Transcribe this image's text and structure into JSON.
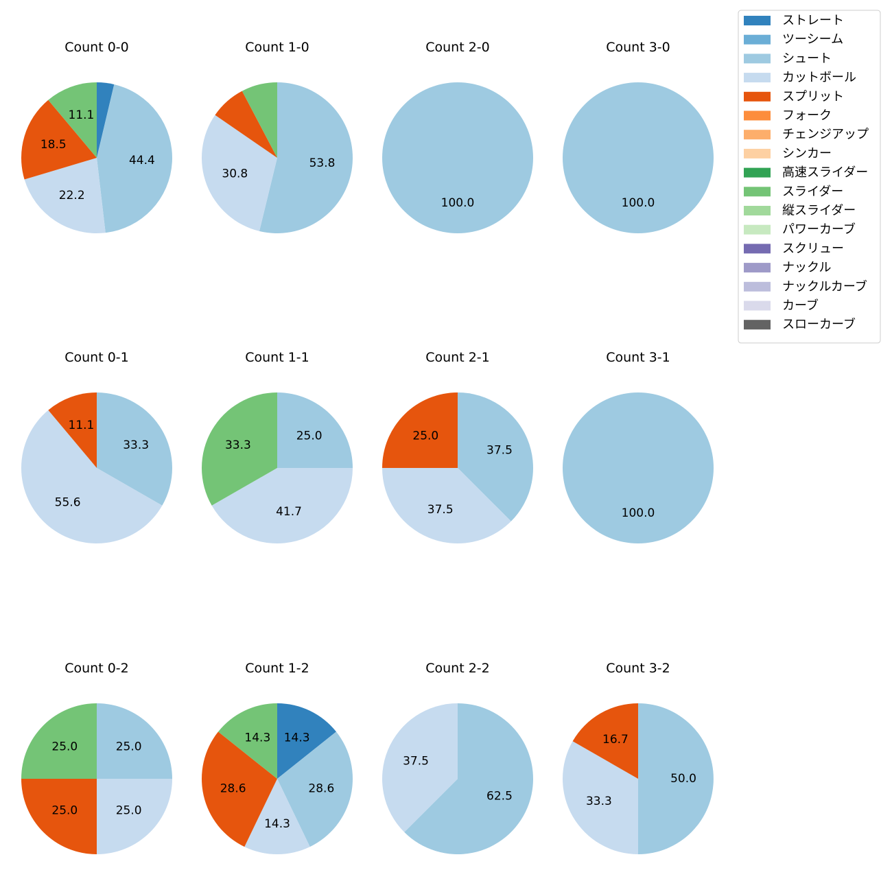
{
  "chart_data": {
    "type": "pie",
    "legend_position": "top-right",
    "categories": [
      {
        "name": "ストレート",
        "color": "#3182bd"
      },
      {
        "name": "ツーシーム",
        "color": "#6baed6"
      },
      {
        "name": "シュート",
        "color": "#9ecae1"
      },
      {
        "name": "カットボール",
        "color": "#c6dbef"
      },
      {
        "name": "スプリット",
        "color": "#e6550d"
      },
      {
        "name": "フォーク",
        "color": "#fd8d3c"
      },
      {
        "name": "チェンジアップ",
        "color": "#fdae6b"
      },
      {
        "name": "シンカー",
        "color": "#fdd0a2"
      },
      {
        "name": "高速スライダー",
        "color": "#31a354"
      },
      {
        "name": "スライダー",
        "color": "#74c476"
      },
      {
        "name": "縦スライダー",
        "color": "#a1d99b"
      },
      {
        "name": "パワーカーブ",
        "color": "#c7e9c0"
      },
      {
        "name": "スクリュー",
        "color": "#756bb1"
      },
      {
        "name": "ナックル",
        "color": "#9e9ac8"
      },
      {
        "name": "ナックルカーブ",
        "color": "#bcbddc"
      },
      {
        "name": "カーブ",
        "color": "#dadaeb"
      },
      {
        "name": "スローカーブ",
        "color": "#636363"
      }
    ],
    "pies": [
      {
        "title": "Count 0-0",
        "slices": [
          {
            "category": "ストレート",
            "value": 3.7,
            "label": ""
          },
          {
            "category": "シュート",
            "value": 44.4,
            "label": "44.4"
          },
          {
            "category": "カットボール",
            "value": 22.2,
            "label": "22.2"
          },
          {
            "category": "スプリット",
            "value": 18.5,
            "label": "18.5"
          },
          {
            "category": "スライダー",
            "value": 11.1,
            "label": "11.1"
          }
        ]
      },
      {
        "title": "Count 1-0",
        "slices": [
          {
            "category": "シュート",
            "value": 53.8,
            "label": "53.8"
          },
          {
            "category": "カットボール",
            "value": 30.8,
            "label": "30.8"
          },
          {
            "category": "スプリット",
            "value": 7.7,
            "label": ""
          },
          {
            "category": "スライダー",
            "value": 7.7,
            "label": ""
          }
        ]
      },
      {
        "title": "Count 2-0",
        "slices": [
          {
            "category": "シュート",
            "value": 100.0,
            "label": "100.0"
          }
        ]
      },
      {
        "title": "Count 3-0",
        "slices": [
          {
            "category": "シュート",
            "value": 100.0,
            "label": "100.0"
          }
        ]
      },
      {
        "title": "Count 0-1",
        "slices": [
          {
            "category": "シュート",
            "value": 33.3,
            "label": "33.3"
          },
          {
            "category": "カットボール",
            "value": 55.6,
            "label": "55.6"
          },
          {
            "category": "スプリット",
            "value": 11.1,
            "label": "11.1"
          }
        ]
      },
      {
        "title": "Count 1-1",
        "slices": [
          {
            "category": "シュート",
            "value": 25.0,
            "label": "25.0"
          },
          {
            "category": "カットボール",
            "value": 41.7,
            "label": "41.7"
          },
          {
            "category": "スライダー",
            "value": 33.3,
            "label": "33.3"
          }
        ]
      },
      {
        "title": "Count 2-1",
        "slices": [
          {
            "category": "シュート",
            "value": 37.5,
            "label": "37.5"
          },
          {
            "category": "カットボール",
            "value": 37.5,
            "label": "37.5"
          },
          {
            "category": "スプリット",
            "value": 25.0,
            "label": "25.0"
          }
        ]
      },
      {
        "title": "Count 3-1",
        "slices": [
          {
            "category": "シュート",
            "value": 100.0,
            "label": "100.0"
          }
        ]
      },
      {
        "title": "Count 0-2",
        "slices": [
          {
            "category": "シュート",
            "value": 25.0,
            "label": "25.0"
          },
          {
            "category": "カットボール",
            "value": 25.0,
            "label": "25.0"
          },
          {
            "category": "スプリット",
            "value": 25.0,
            "label": "25.0"
          },
          {
            "category": "スライダー",
            "value": 25.0,
            "label": "25.0"
          }
        ]
      },
      {
        "title": "Count 1-2",
        "slices": [
          {
            "category": "ストレート",
            "value": 14.3,
            "label": "14.3"
          },
          {
            "category": "シュート",
            "value": 28.6,
            "label": "28.6"
          },
          {
            "category": "カットボール",
            "value": 14.3,
            "label": "14.3"
          },
          {
            "category": "スプリット",
            "value": 28.6,
            "label": "28.6"
          },
          {
            "category": "スライダー",
            "value": 14.3,
            "label": "14.3"
          }
        ]
      },
      {
        "title": "Count 2-2",
        "slices": [
          {
            "category": "シュート",
            "value": 62.5,
            "label": "62.5"
          },
          {
            "category": "カットボール",
            "value": 37.5,
            "label": "37.5"
          }
        ]
      },
      {
        "title": "Count 3-2",
        "slices": [
          {
            "category": "シュート",
            "value": 50.0,
            "label": "50.0"
          },
          {
            "category": "カットボール",
            "value": 33.3,
            "label": "33.3"
          },
          {
            "category": "スプリット",
            "value": 16.7,
            "label": "16.7"
          }
        ]
      }
    ]
  }
}
